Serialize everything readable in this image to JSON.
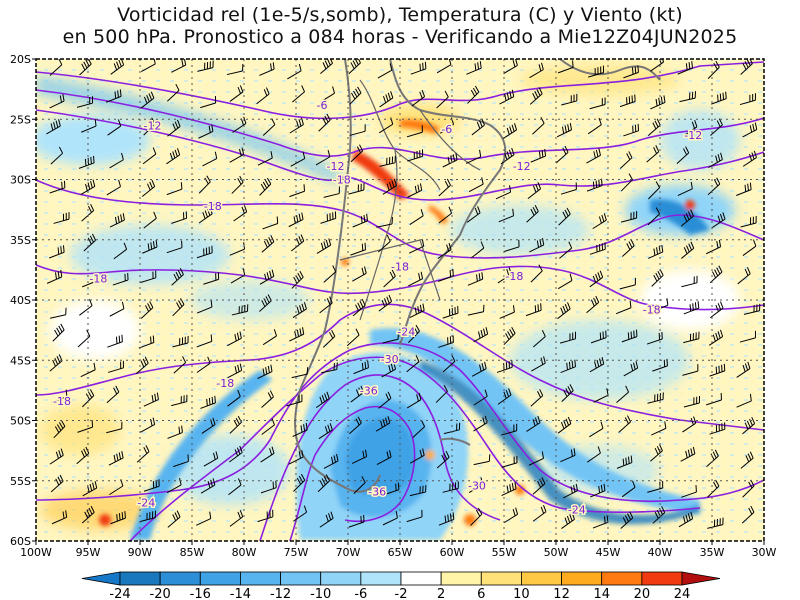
{
  "title": {
    "line1": "Vorticidad rel (1e-5/s,somb), Temperatura (C) y Viento (kt)",
    "line2": "en 500 hPa. Pronostico a 084 horas - Verificando a Mie12Z04JUN2025"
  },
  "map": {
    "lon_range": [
      -100,
      -30
    ],
    "lat_range": [
      -60,
      -20
    ],
    "lon_ticks": [
      {
        "v": -100,
        "label": "100W"
      },
      {
        "v": -95,
        "label": "95W"
      },
      {
        "v": -90,
        "label": "90W"
      },
      {
        "v": -85,
        "label": "85W"
      },
      {
        "v": -80,
        "label": "80W"
      },
      {
        "v": -75,
        "label": "75W"
      },
      {
        "v": -70,
        "label": "70W"
      },
      {
        "v": -65,
        "label": "65W"
      },
      {
        "v": -60,
        "label": "60W"
      },
      {
        "v": -55,
        "label": "55W"
      },
      {
        "v": -50,
        "label": "50W"
      },
      {
        "v": -45,
        "label": "45W"
      },
      {
        "v": -40,
        "label": "40W"
      },
      {
        "v": -35,
        "label": "35W"
      },
      {
        "v": -30,
        "label": "30W"
      }
    ],
    "lat_ticks": [
      {
        "v": -20,
        "label": "20S"
      },
      {
        "v": -25,
        "label": "25S"
      },
      {
        "v": -30,
        "label": "30S"
      },
      {
        "v": -35,
        "label": "35S"
      },
      {
        "v": -40,
        "label": "40S"
      },
      {
        "v": -45,
        "label": "45S"
      },
      {
        "v": -50,
        "label": "50S"
      },
      {
        "v": -55,
        "label": "55S"
      },
      {
        "v": -60,
        "label": "60S"
      }
    ],
    "contour_labels": [
      {
        "text": "-6",
        "lon": -72.5,
        "lat": -23.8
      },
      {
        "text": "-6",
        "lon": -60.5,
        "lat": -25.8
      },
      {
        "text": "-12",
        "lon": -88.8,
        "lat": -25.5
      },
      {
        "text": "-12",
        "lon": -71.2,
        "lat": -28.9
      },
      {
        "text": "-12",
        "lon": -53.3,
        "lat": -28.9
      },
      {
        "text": "-12",
        "lon": -36.8,
        "lat": -26.3
      },
      {
        "text": "-18",
        "lon": -70.6,
        "lat": -30.0
      },
      {
        "text": "-18",
        "lon": -83.0,
        "lat": -32.2
      },
      {
        "text": "-18",
        "lon": -65.0,
        "lat": -37.2
      },
      {
        "text": "-18",
        "lon": -54.0,
        "lat": -38.0
      },
      {
        "text": "-18",
        "lon": -94.0,
        "lat": -38.2
      },
      {
        "text": "-18",
        "lon": -40.8,
        "lat": -40.8
      },
      {
        "text": "-18",
        "lon": -81.8,
        "lat": -46.9
      },
      {
        "text": "-18",
        "lon": -97.5,
        "lat": -48.4
      },
      {
        "text": "-24",
        "lon": -64.4,
        "lat": -42.6
      },
      {
        "text": "-24",
        "lon": -89.4,
        "lat": -56.8
      },
      {
        "text": "-24",
        "lon": -48.0,
        "lat": -57.4
      },
      {
        "text": "-30",
        "lon": -66.0,
        "lat": -44.9
      },
      {
        "text": "-30",
        "lon": -57.6,
        "lat": -55.4
      },
      {
        "text": "-36",
        "lon": -68.0,
        "lat": -47.5
      },
      {
        "text": "-36",
        "lon": -67.2,
        "lat": -55.9
      }
    ]
  },
  "colorbar": {
    "labels": [
      "-24",
      "-20",
      "-16",
      "-14",
      "-12",
      "-10",
      "-6",
      "-2",
      "2",
      "6",
      "10",
      "12",
      "14",
      "20",
      "24"
    ],
    "colors": [
      "#1a78bf",
      "#2b8ed6",
      "#3fa2e6",
      "#58b4ef",
      "#72c4f5",
      "#90d4f8",
      "#b0e4fa",
      "#ffffff",
      "#fff4a8",
      "#ffe27a",
      "#ffc845",
      "#ffab20",
      "#ff7a10",
      "#f03a0f"
    ],
    "end_low": "#1778c8",
    "end_high": "#b40f0f"
  },
  "colors": {
    "contour": "#8b1fe0",
    "coast": "#777777",
    "border": "#666666",
    "grid": "#555555",
    "barb": "#000000"
  }
}
